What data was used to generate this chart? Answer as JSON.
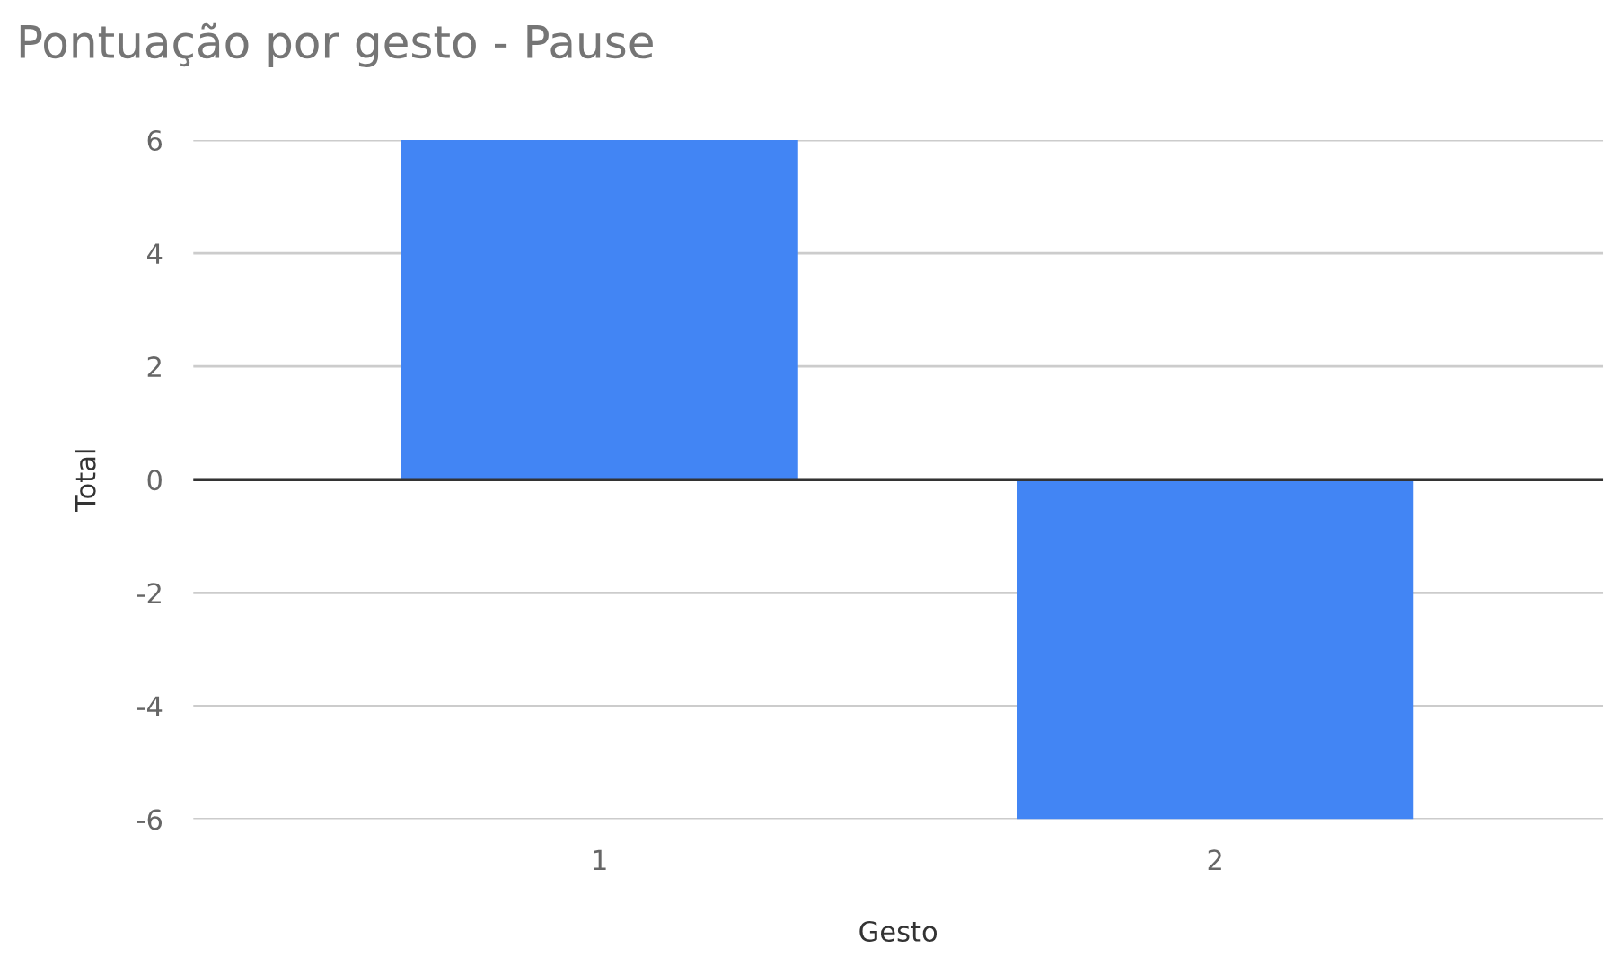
{
  "chart_data": {
    "type": "bar",
    "title": "Pontuação por gesto - Pause",
    "xlabel": "Gesto",
    "ylabel": "Total",
    "categories": [
      "1",
      "2"
    ],
    "values": [
      6,
      -6
    ],
    "color": "#4285f4",
    "ylim": [
      -6,
      6
    ],
    "yticks": [
      -6,
      -4,
      -2,
      0,
      2,
      4,
      6
    ],
    "grid": "y",
    "legend": false
  }
}
